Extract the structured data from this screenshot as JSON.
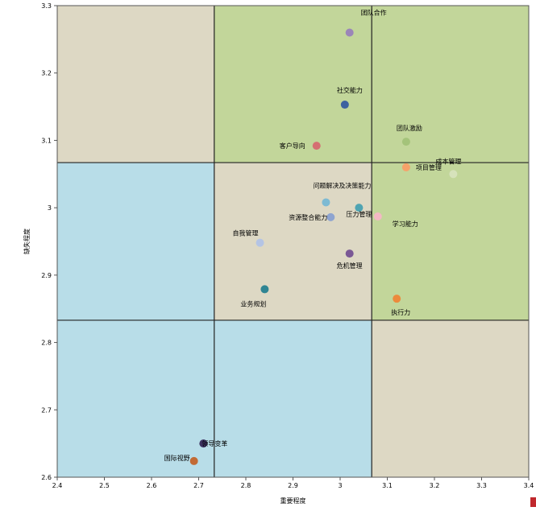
{
  "chart_data": {
    "type": "scatter",
    "xlabel": "重要程度",
    "ylabel": "缺失程度",
    "xlim": [
      2.4,
      3.4
    ],
    "ylim": [
      2.6,
      3.3
    ],
    "x_ticks": [
      "2.4",
      "2.5",
      "2.6",
      "2.7",
      "2.8",
      "2.9",
      "3",
      "3.1",
      "3.2",
      "3.3",
      "3.4"
    ],
    "y_ticks": [
      "2.6",
      "2.7",
      "2.8",
      "2.9",
      "3",
      "3.1",
      "3.2",
      "3.3"
    ],
    "divider_x": [
      2.733,
      3.067
    ],
    "divider_y": [
      2.833,
      3.067
    ],
    "quadrant_colors": {
      "beige": "#ddd8c4",
      "green": "#c2d69a",
      "blue": "#b8dde8"
    },
    "grid": false,
    "legend": "none",
    "points": [
      {
        "label": "团队合作",
        "x": 3.02,
        "y": 3.26,
        "color": "#9b86b8"
      },
      {
        "label": "社交能力",
        "x": 3.01,
        "y": 3.153,
        "color": "#3e62a0"
      },
      {
        "label": "团队激励",
        "x": 3.14,
        "y": 3.098,
        "color": "#a4c37a"
      },
      {
        "label": "客户导向",
        "x": 2.95,
        "y": 3.092,
        "color": "#d56f72"
      },
      {
        "label": "项目管理",
        "x": 3.14,
        "y": 3.06,
        "color": "#f5a26a"
      },
      {
        "label": "成本管理",
        "x": 3.24,
        "y": 3.05,
        "color": "#d6e2bb"
      },
      {
        "label": "问题解决及决策能力",
        "x": 2.97,
        "y": 3.008,
        "color": "#7dbad3"
      },
      {
        "label": "压力管理",
        "x": 3.04,
        "y": 3.0,
        "color": "#4fa4b2"
      },
      {
        "label": "资源整合能力",
        "x": 2.98,
        "y": 2.986,
        "color": "#8ea4d0"
      },
      {
        "label": "学习能力",
        "x": 3.08,
        "y": 2.987,
        "color": "#f3b9c4"
      },
      {
        "label": "自我管理",
        "x": 2.83,
        "y": 2.948,
        "color": "#b4c4e4"
      },
      {
        "label": "危机管理",
        "x": 3.02,
        "y": 2.932,
        "color": "#7a5895"
      },
      {
        "label": "业务规划",
        "x": 2.84,
        "y": 2.879,
        "color": "#2f8593"
      },
      {
        "label": "执行力",
        "x": 3.12,
        "y": 2.865,
        "color": "#ec8a3c"
      },
      {
        "label": "领导变革",
        "x": 2.71,
        "y": 2.65,
        "color": "#3c3160"
      },
      {
        "label": "国际视野",
        "x": 2.69,
        "y": 2.624,
        "color": "#c26a34"
      }
    ]
  }
}
